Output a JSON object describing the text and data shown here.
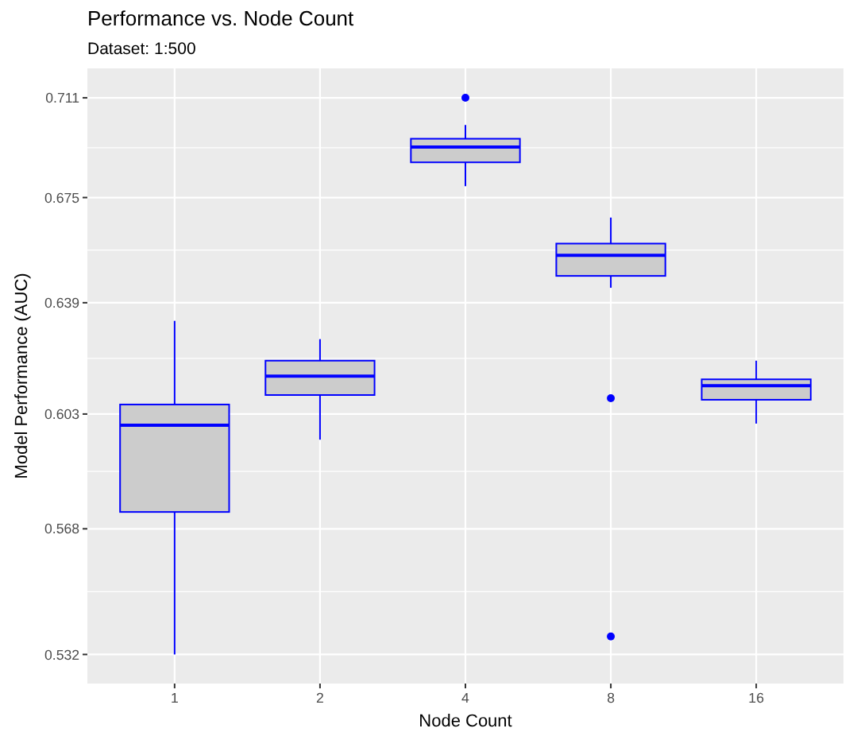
{
  "chart_data": {
    "type": "box",
    "title": "Performance vs. Node Count",
    "subtitle": "Dataset: 1:500",
    "xlabel": "Node Count",
    "ylabel": "Model Performance (AUC)",
    "categories": [
      "1",
      "2",
      "4",
      "8",
      "16"
    ],
    "color": "#0000ff",
    "boxes": [
      {
        "low": 0.532,
        "q1": 0.573,
        "median": 0.5995,
        "q3": 0.606,
        "high": 0.633
      },
      {
        "low": 0.595,
        "q1": 0.609,
        "median": 0.615,
        "q3": 0.62,
        "high": 0.627
      },
      {
        "low": 0.679,
        "q1": 0.6875,
        "median": 0.693,
        "q3": 0.696,
        "high": 0.701,
        "outliers": [
          0.711
        ]
      },
      {
        "low": 0.644,
        "q1": 0.648,
        "median": 0.655,
        "q3": 0.659,
        "high": 0.668,
        "outliers": [
          0.608,
          0.537
        ]
      },
      {
        "low": 0.6,
        "q1": 0.6075,
        "median": 0.612,
        "q3": 0.614,
        "high": 0.62
      }
    ],
    "log": true,
    "ylim": [
      0.524,
      0.722
    ],
    "yticks": [
      0.532,
      0.568,
      0.603,
      0.639,
      0.675,
      0.711
    ],
    "grid": true
  }
}
